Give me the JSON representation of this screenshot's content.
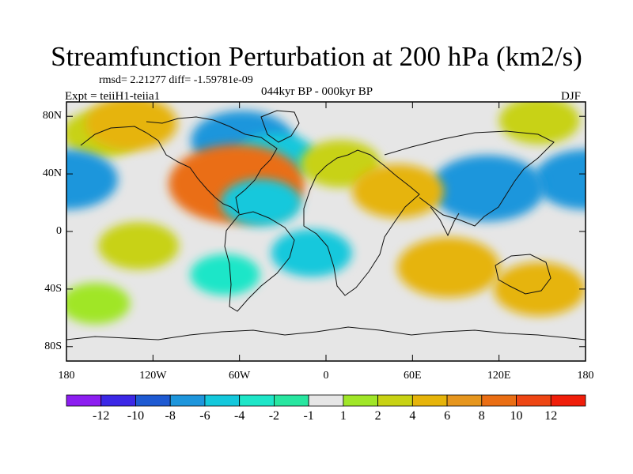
{
  "figure": {
    "title": "Streamfunction Perturbation at 200 hPa (km2/s)",
    "stats": "rmsd= 2.21277 diff= -1.59781e-09",
    "experiment": "Expt = teiiH1-teiia1",
    "period": "044kyr BP - 000kyr BP",
    "season": "DJF"
  },
  "axes": {
    "y_ticks": [
      "80N",
      "40N",
      "0",
      "40S",
      "80S"
    ],
    "x_ticks": [
      "180",
      "120W",
      "60W",
      "0",
      "60E",
      "120E",
      "180"
    ]
  },
  "colorbar": {
    "colors": [
      "#8c1ef0",
      "#3c28e6",
      "#1e5ad2",
      "#1e96dc",
      "#14c8dc",
      "#1ee6c8",
      "#28e6a0",
      "#e6e6e6",
      "#a0e628",
      "#c8d214",
      "#e6b40a",
      "#e6961e",
      "#ea6e14",
      "#ee4614",
      "#f01e0a"
    ],
    "labels": [
      "-12",
      "-10",
      "-8",
      "-6",
      "-4",
      "-2",
      "-1",
      "1",
      "2",
      "4",
      "6",
      "8",
      "10",
      "12"
    ]
  },
  "map_data": {
    "projection": "cylindrical-equidistant",
    "lon_range": [
      -180,
      180
    ],
    "lat_range": [
      -90,
      90
    ],
    "background_color": "#e6e6e6",
    "anomalies": [
      {
        "lon": -58,
        "lat": 63,
        "value": -5,
        "color": "#1e96dc"
      },
      {
        "lon": -35,
        "lat": 52,
        "value": -3,
        "color": "#14c8dc"
      },
      {
        "lon": -155,
        "lat": 68,
        "value": 3,
        "color": "#c8d214"
      },
      {
        "lon": -135,
        "lat": 75,
        "value": 4,
        "color": "#e6b40a"
      },
      {
        "lon": -62,
        "lat": 33,
        "value": 8,
        "color": "#ea6e14"
      },
      {
        "lon": -180,
        "lat": 36,
        "value": -5,
        "color": "#1e96dc"
      },
      {
        "lon": 180,
        "lat": 36,
        "value": -5,
        "color": "#1e96dc"
      },
      {
        "lon": 112,
        "lat": 30,
        "value": -6,
        "color": "#1e96dc"
      },
      {
        "lon": 10,
        "lat": 47,
        "value": 3,
        "color": "#c8d214"
      },
      {
        "lon": 50,
        "lat": 28,
        "value": 4,
        "color": "#e6b40a"
      },
      {
        "lon": 148,
        "lat": 77,
        "value": 3,
        "color": "#c8d214"
      },
      {
        "lon": -10,
        "lat": -15,
        "value": -3,
        "color": "#14c8dc"
      },
      {
        "lon": -45,
        "lat": 20,
        "value": -3,
        "color": "#14c8dc"
      },
      {
        "lon": 85,
        "lat": -25,
        "value": 5,
        "color": "#e6b40a"
      },
      {
        "lon": 148,
        "lat": -40,
        "value": 4,
        "color": "#e6b40a"
      },
      {
        "lon": -130,
        "lat": -10,
        "value": 3,
        "color": "#c8d214"
      },
      {
        "lon": -160,
        "lat": -50,
        "value": 2,
        "color": "#a0e628"
      },
      {
        "lon": -70,
        "lat": -30,
        "value": -2,
        "color": "#1ee6c8"
      }
    ]
  }
}
